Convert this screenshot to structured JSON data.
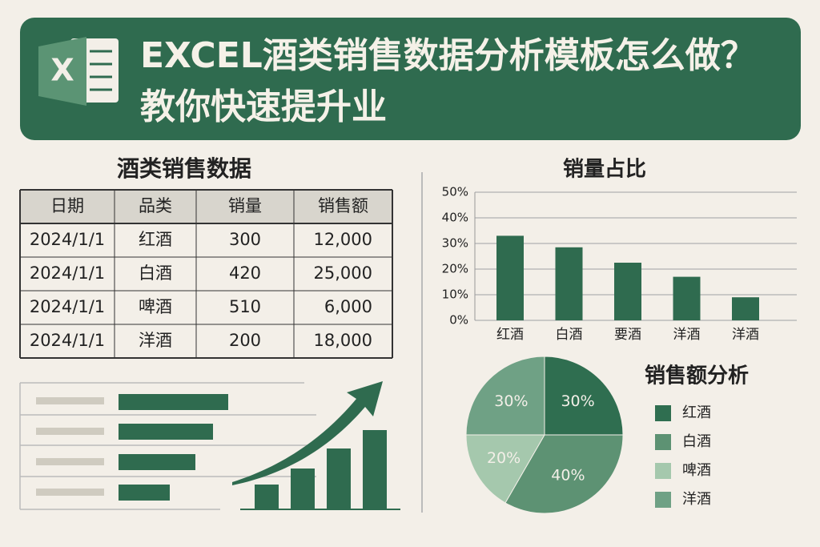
{
  "header": {
    "icon_letter": "X",
    "title": "EXCEL酒类销售数据分析模板怎么做？教你快速提升业"
  },
  "table": {
    "title": "酒类销售数据",
    "columns": [
      "日期",
      "品类",
      "销量",
      "销售额"
    ],
    "rows": [
      [
        "2024/1/1",
        "红酒",
        "300",
        "12,000"
      ],
      [
        "2024/1/1",
        "白酒",
        "420",
        "25,000"
      ],
      [
        "2024/1/1",
        "啤酒",
        "510",
        "6,000"
      ],
      [
        "2024/1/1",
        "洋酒",
        "200",
        "18,000"
      ]
    ]
  },
  "chart_data": [
    {
      "type": "bar",
      "title": "销量占比",
      "categories": [
        "红酒",
        "白酒",
        "要酒",
        "洋酒",
        "洋酒"
      ],
      "values": [
        33,
        28.5,
        22.5,
        17,
        9
      ],
      "color": "#2f6b4f",
      "ylim": [
        0,
        50
      ],
      "yticks": [
        {
          "value": 0,
          "label": "0%"
        },
        {
          "value": 10,
          "label": "10%"
        },
        {
          "value": 20,
          "label": "20%"
        },
        {
          "value": 30,
          "label": "30%"
        },
        {
          "value": 40,
          "label": "40%"
        },
        {
          "value": 50,
          "label": "50%"
        }
      ],
      "grid": true
    },
    {
      "type": "pie",
      "title": "销售额分析",
      "series": [
        {
          "name": "红酒",
          "color": "#2f6e50"
        },
        {
          "name": "白酒",
          "color": "#5d9273"
        },
        {
          "name": "啤酒",
          "color": "#a5c8ad"
        },
        {
          "name": "洋酒",
          "color": "#6fa185"
        }
      ],
      "values": [
        30,
        40,
        20,
        30
      ],
      "value_labels": [
        "30%",
        "40%",
        "20%",
        "30%"
      ]
    }
  ]
}
